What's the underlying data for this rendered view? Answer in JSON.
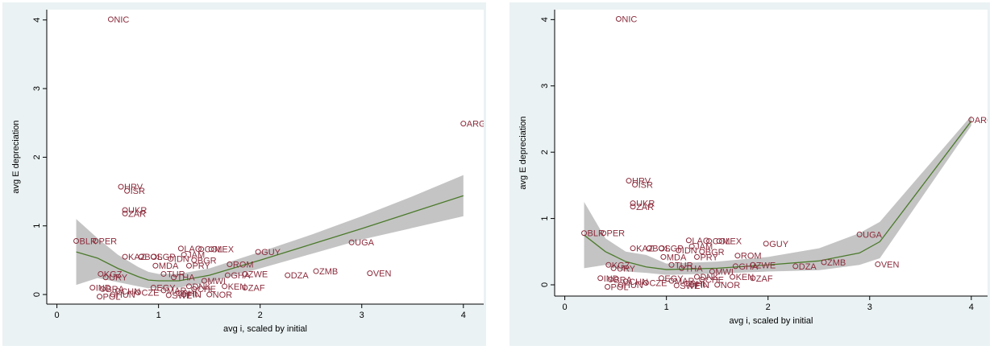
{
  "chart_data": [
    {
      "type": "scatter",
      "xlabel": "avg i, scaled by initial",
      "ylabel": "avg E depreciation",
      "xlim": [
        -0.1,
        4.2
      ],
      "ylim": [
        -0.14,
        4.15
      ],
      "xticks": [
        0,
        1,
        2,
        3,
        4
      ],
      "yticks": [
        0,
        1,
        2,
        3,
        4
      ],
      "color": "#8b2c3c",
      "x": [
        0.53,
        4.0,
        0.63,
        0.69,
        0.67,
        0.67,
        0.19,
        0.38,
        2.9,
        1.98,
        1.22,
        1.42,
        1.52,
        0.67,
        0.83,
        0.95,
        1.25,
        1.12,
        0.97,
        1.3,
        1.7,
        1.35,
        0.43,
        0.48,
        1.68,
        1.85,
        2.27,
        2.55,
        3.08,
        1.05,
        1.15,
        1.45,
        1.65,
        1.85,
        1.5,
        0.35,
        0.45,
        0.6,
        0.42,
        0.55,
        0.8,
        0.95,
        1.05,
        1.2,
        1.35,
        1.25,
        1.1,
        1.3
      ],
      "values": [
        4.01,
        2.49,
        1.57,
        1.51,
        1.23,
        1.18,
        0.78,
        0.78,
        0.76,
        0.62,
        0.67,
        0.66,
        0.66,
        0.55,
        0.55,
        0.55,
        0.58,
        0.52,
        0.42,
        0.42,
        0.44,
        0.5,
        0.3,
        0.25,
        0.28,
        0.3,
        0.28,
        0.34,
        0.31,
        0.3,
        0.25,
        0.2,
        0.12,
        0.1,
        0.0,
        0.1,
        0.08,
        0.05,
        -0.03,
        0.0,
        0.03,
        0.1,
        0.06,
        0.02,
        0.08,
        0.0,
        -0.01,
        0.12
      ],
      "labels": [
        "NIC",
        "ARG",
        "HRV",
        "ISR",
        "UKR",
        "ZAR",
        "BLR",
        "PER",
        "UGA",
        "GUY",
        "LAO",
        "COL",
        "MEX",
        "KAZ",
        "BOL",
        "SGP",
        "JAM",
        "IDN",
        "MDA",
        "PRY",
        "ROM",
        "BGR",
        "KGZ",
        "URY",
        "GHA",
        "ZWE",
        "DZA",
        "ZMB",
        "VEN",
        "TUR",
        "THA",
        "MWI",
        "KEN",
        "ZAF",
        "NOR",
        "IND",
        "BRA",
        "CHN",
        "POL",
        "HUN",
        "CZE",
        "EGY",
        "MAR",
        "PHL",
        "CHE",
        "FIN",
        "SWE",
        "DNK"
      ],
      "fit": {
        "color": "#4b7a2b",
        "band_color": "#c4c4c4",
        "x": [
          0.19,
          0.4,
          0.6,
          0.8,
          0.9,
          1.0,
          1.2,
          1.5,
          2.0,
          2.5,
          3.0,
          3.5,
          4.0
        ],
        "values": [
          0.62,
          0.53,
          0.38,
          0.26,
          0.21,
          0.2,
          0.2,
          0.28,
          0.5,
          0.73,
          0.96,
          1.2,
          1.44
        ],
        "upper": [
          1.1,
          0.82,
          0.58,
          0.4,
          0.33,
          0.3,
          0.3,
          0.38,
          0.62,
          0.87,
          1.14,
          1.43,
          1.74
        ],
        "lower": [
          0.14,
          0.24,
          0.18,
          0.12,
          0.09,
          0.1,
          0.1,
          0.18,
          0.38,
          0.59,
          0.8,
          0.97,
          1.14
        ]
      }
    },
    {
      "type": "scatter",
      "xlabel": "avg i, scaled by initial",
      "ylabel": "avg E depreciation",
      "xlim": [
        -0.1,
        4.16
      ],
      "ylim": [
        -0.17,
        4.15
      ],
      "xticks": [
        0,
        1,
        2,
        3,
        4
      ],
      "yticks": [
        0,
        1,
        2,
        3,
        4
      ],
      "color": "#8b2c3c",
      "x": [
        0.53,
        4.0,
        0.63,
        0.69,
        0.67,
        0.67,
        0.19,
        0.38,
        2.9,
        1.98,
        1.22,
        1.42,
        1.52,
        0.67,
        0.83,
        0.95,
        1.25,
        1.12,
        0.97,
        1.3,
        1.7,
        1.35,
        0.43,
        0.48,
        1.68,
        1.85,
        2.27,
        2.55,
        3.08,
        1.05,
        1.15,
        1.45,
        1.65,
        1.85,
        1.5,
        0.35,
        0.45,
        0.6,
        0.42,
        0.55,
        0.8,
        0.95,
        1.05,
        1.2,
        1.35,
        1.25,
        1.1,
        1.3
      ],
      "values": [
        4.01,
        2.49,
        1.57,
        1.51,
        1.23,
        1.18,
        0.78,
        0.78,
        0.76,
        0.62,
        0.67,
        0.66,
        0.66,
        0.55,
        0.55,
        0.55,
        0.58,
        0.52,
        0.42,
        0.42,
        0.44,
        0.5,
        0.3,
        0.25,
        0.28,
        0.3,
        0.28,
        0.34,
        0.31,
        0.3,
        0.25,
        0.2,
        0.12,
        0.1,
        0.0,
        0.1,
        0.08,
        0.05,
        -0.03,
        0.0,
        0.03,
        0.1,
        0.06,
        0.02,
        0.08,
        0.0,
        -0.01,
        0.12
      ],
      "labels": [
        "NIC",
        "ARG",
        "HRV",
        "ISR",
        "UKR",
        "ZAR",
        "BLR",
        "PER",
        "UGA",
        "GUY",
        "LAO",
        "COL",
        "MEX",
        "KAZ",
        "BOL",
        "SGP",
        "JAM",
        "IDN",
        "MDA",
        "PRY",
        "ROM",
        "BGR",
        "KGZ",
        "URY",
        "GHA",
        "ZWE",
        "DZA",
        "ZMB",
        "VEN",
        "TUR",
        "THA",
        "MWI",
        "KEN",
        "ZAF",
        "NOR",
        "IND",
        "BRA",
        "CHN",
        "POL",
        "HUN",
        "CZE",
        "EGY",
        "MAR",
        "PHL",
        "CHE",
        "FIN",
        "SWE",
        "DNK"
      ],
      "fit": {
        "color": "#4b7a2b",
        "band_color": "#c4c4c4",
        "x": [
          0.19,
          0.4,
          0.6,
          0.8,
          1.0,
          1.5,
          2.0,
          2.5,
          2.9,
          3.1,
          4.0
        ],
        "values": [
          0.75,
          0.5,
          0.35,
          0.27,
          0.23,
          0.25,
          0.3,
          0.36,
          0.48,
          0.65,
          2.47
        ],
        "upper": [
          1.25,
          0.7,
          0.5,
          0.45,
          0.32,
          0.35,
          0.42,
          0.55,
          0.78,
          0.95,
          2.55
        ],
        "lower": [
          0.25,
          0.3,
          0.2,
          0.18,
          0.15,
          0.17,
          0.2,
          0.22,
          0.3,
          0.4,
          2.4
        ]
      }
    }
  ]
}
